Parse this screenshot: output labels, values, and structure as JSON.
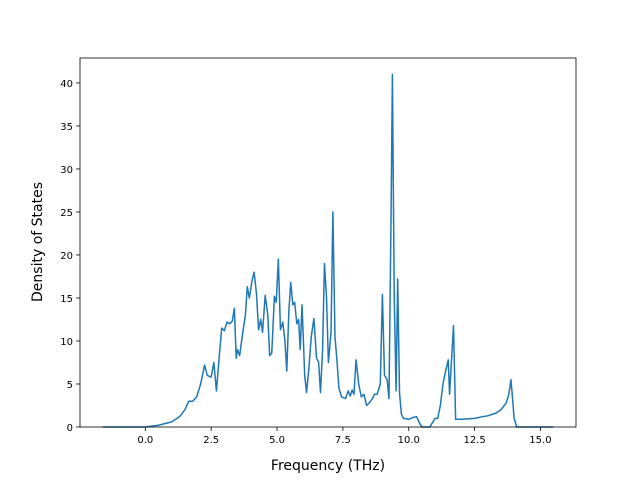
{
  "chart_data": {
    "type": "line",
    "xlabel": "Frequency (THz)",
    "ylabel": "Density of States",
    "xlim": [
      -2.48,
      16.35
    ],
    "ylim": [
      0,
      42.9
    ],
    "xticks": [
      {
        "value": 0,
        "label": "0.0"
      },
      {
        "value": 2.5,
        "label": "2.5"
      },
      {
        "value": 5,
        "label": "5.0"
      },
      {
        "value": 7.5,
        "label": "7.5"
      },
      {
        "value": 10,
        "label": "10.0"
      },
      {
        "value": 12.5,
        "label": "12.5"
      },
      {
        "value": 15,
        "label": "15.0"
      }
    ],
    "yticks": [
      0,
      5,
      10,
      15,
      20,
      25,
      30,
      35,
      40
    ],
    "grid": false,
    "series": [
      {
        "color": "#1f77b4",
        "x": [
          -1.62,
          0,
          0.5,
          1.0,
          1.3,
          1.5,
          1.65,
          1.8,
          1.95,
          2.1,
          2.25,
          2.35,
          2.5,
          2.6,
          2.7,
          2.8,
          2.9,
          3.0,
          3.1,
          3.2,
          3.3,
          3.38,
          3.45,
          3.5,
          3.58,
          3.7,
          3.8,
          3.87,
          3.95,
          4.05,
          4.13,
          4.22,
          4.3,
          4.38,
          4.45,
          4.55,
          4.65,
          4.72,
          4.8,
          4.9,
          4.97,
          5.05,
          5.13,
          5.22,
          5.3,
          5.37,
          5.45,
          5.52,
          5.6,
          5.67,
          5.75,
          5.82,
          5.88,
          5.95,
          6.05,
          6.12,
          6.2,
          6.3,
          6.4,
          6.5,
          6.58,
          6.65,
          6.73,
          6.8,
          6.88,
          6.95,
          7.05,
          7.12,
          7.2,
          7.28,
          7.35,
          7.45,
          7.6,
          7.7,
          7.78,
          7.85,
          7.92,
          8.0,
          8.1,
          8.2,
          8.3,
          8.4,
          8.5,
          8.6,
          8.7,
          8.8,
          8.92,
          9.0,
          9.08,
          9.18,
          9.25,
          9.33,
          9.38,
          9.45,
          9.52,
          9.58,
          9.65,
          9.72,
          9.8,
          10.0,
          10.15,
          10.3,
          10.4,
          10.5,
          10.8,
          10.9,
          11.0,
          11.1,
          11.2,
          11.3,
          11.4,
          11.5,
          11.55,
          11.6,
          11.7,
          11.78,
          12.0,
          12.5,
          12.8,
          13.0,
          13.3,
          13.5,
          13.7,
          13.8,
          13.88,
          13.95,
          14.0,
          14.1,
          15.49
        ],
        "values": [
          0,
          0,
          0.2,
          0.6,
          1.2,
          2.0,
          3.0,
          3.0,
          3.5,
          5.0,
          7.2,
          6.0,
          5.8,
          7.5,
          4.2,
          8.0,
          11.5,
          11.2,
          12.2,
          12.0,
          12.3,
          13.8,
          8.0,
          9.0,
          8.3,
          11.0,
          13.0,
          16.3,
          15.0,
          17.0,
          18.0,
          15.5,
          11.3,
          12.5,
          11.0,
          15.3,
          13.0,
          8.3,
          8.6,
          15.2,
          14.5,
          19.5,
          11.3,
          12.2,
          10.0,
          6.5,
          13.5,
          16.8,
          14.2,
          14.5,
          12.0,
          12.5,
          9.0,
          14.2,
          6.0,
          4.0,
          6.5,
          10.5,
          12.6,
          8.0,
          7.5,
          4.0,
          9.0,
          19.0,
          15.0,
          7.5,
          11.0,
          25.0,
          10.5,
          7.5,
          4.5,
          3.5,
          3.3,
          4.2,
          3.6,
          4.3,
          3.8,
          7.8,
          5.0,
          3.5,
          3.8,
          2.5,
          2.8,
          3.2,
          3.8,
          3.8,
          5.0,
          15.4,
          6.0,
          5.5,
          3.3,
          25,
          41,
          15,
          4.2,
          17.2,
          4.0,
          1.5,
          1.0,
          0.9,
          1.1,
          1.2,
          0.5,
          0,
          0,
          0.5,
          1.0,
          1.0,
          2.5,
          5.0,
          6.5,
          7.8,
          3.8,
          6.5,
          11.8,
          0.9,
          0.9,
          1.0,
          1.2,
          1.3,
          1.6,
          2.0,
          2.8,
          3.8,
          5.5,
          3.0,
          1.0,
          0,
          0
        ]
      }
    ]
  }
}
